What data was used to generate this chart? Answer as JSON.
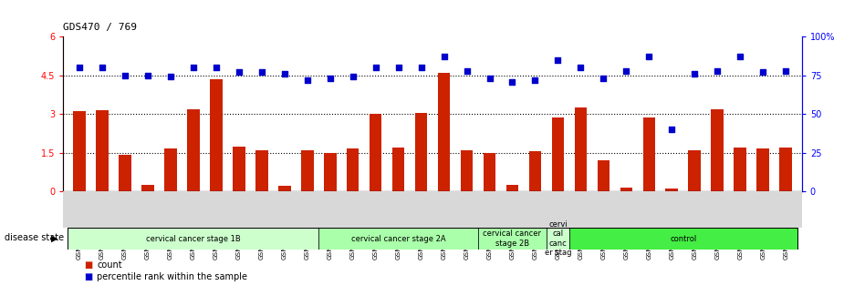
{
  "title": "GDS470 / 769",
  "samples": [
    "GSM7828",
    "GSM7830",
    "GSM7834",
    "GSM7836",
    "GSM7837",
    "GSM7838",
    "GSM7840",
    "GSM7854",
    "GSM7855",
    "GSM7856",
    "GSM7858",
    "GSM7820",
    "GSM7821",
    "GSM7824",
    "GSM7827",
    "GSM7829",
    "GSM7831",
    "GSM7835",
    "GSM7839",
    "GSM7822",
    "GSM7823",
    "GSM7825",
    "GSM7857",
    "GSM7832",
    "GSM7841",
    "GSM7842",
    "GSM7843",
    "GSM7844",
    "GSM7845",
    "GSM7846",
    "GSM7847",
    "GSM7848"
  ],
  "bar_values": [
    3.1,
    3.15,
    1.4,
    0.25,
    1.65,
    3.2,
    4.35,
    1.75,
    1.6,
    0.2,
    1.6,
    1.5,
    1.65,
    3.0,
    1.7,
    3.05,
    4.6,
    1.6,
    1.5,
    0.25,
    1.55,
    2.85,
    3.25,
    1.2,
    0.15,
    2.85,
    0.1,
    1.6,
    3.2,
    1.7,
    1.65,
    1.7
  ],
  "dot_values": [
    80,
    80,
    75,
    75,
    74,
    80,
    80,
    77,
    77,
    76,
    72,
    73,
    74,
    80,
    80,
    80,
    87,
    78,
    73,
    71,
    72,
    85,
    80,
    73,
    78,
    87,
    40,
    76,
    78,
    87,
    77,
    78
  ],
  "bar_color": "#cc2200",
  "dot_color": "#0000cc",
  "group_configs": [
    {
      "label": "cervical cancer stage 1B",
      "start": 0,
      "end": 10,
      "color": "#ccffcc"
    },
    {
      "label": "cervical cancer stage 2A",
      "start": 11,
      "end": 17,
      "color": "#aaffaa"
    },
    {
      "label": "cervical cancer\nstage 2B",
      "start": 18,
      "end": 20,
      "color": "#aaffaa"
    },
    {
      "label": "cervi\ncal\ncanc\ner stag",
      "start": 21,
      "end": 21,
      "color": "#ccffcc"
    },
    {
      "label": "control",
      "start": 22,
      "end": 31,
      "color": "#44ee44"
    }
  ],
  "ylim_left": [
    0,
    6
  ],
  "ylim_right": [
    0,
    100
  ],
  "yticks_left": [
    0,
    1.5,
    3.0,
    4.5,
    6.0
  ],
  "ytick_labels_left": [
    "0",
    "1.5",
    "3",
    "4.5",
    "6"
  ],
  "yticks_right": [
    0,
    25,
    50,
    75,
    100
  ],
  "ytick_labels_right": [
    "0",
    "25",
    "50",
    "75",
    "100%"
  ],
  "hlines": [
    1.5,
    3.0,
    4.5
  ],
  "legend_count_label": "count",
  "legend_percentile_label": "percentile rank within the sample",
  "disease_state_label": "disease state"
}
